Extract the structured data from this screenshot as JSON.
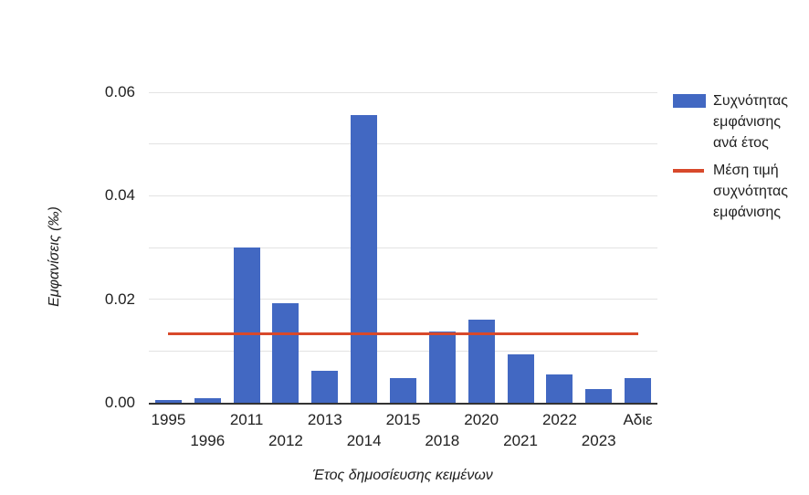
{
  "chart_data": {
    "type": "bar",
    "title": "",
    "xlabel": "Έτος δημοσίευσης κειμένων",
    "ylabel": "Εμφανίσεις (‰)",
    "categories": [
      "1995",
      "1996",
      "2011",
      "2012",
      "2013",
      "2014",
      "2015",
      "2018",
      "2020",
      "2021",
      "2022",
      "2023",
      "Αδιε"
    ],
    "series": [
      {
        "name": "Συχνότητας εμφάνισης ανά έτος",
        "type": "bar",
        "color": "#4268c2",
        "values": [
          0.0005,
          0.0009,
          0.0301,
          0.0193,
          0.0062,
          0.0557,
          0.0047,
          0.0138,
          0.016,
          0.0094,
          0.0055,
          0.0027,
          0.0048
        ]
      },
      {
        "name": "Μέση τιμή συχνότητας εμφάνισης",
        "type": "horizontal-line",
        "color": "#d8492b",
        "value": 0.0133
      }
    ],
    "ylim": [
      0,
      0.0611
    ],
    "yticks": {
      "values": [
        0,
        0.02,
        0.04,
        0.06
      ],
      "labels": [
        "0.00",
        "0.02",
        "0.04",
        "0.06"
      ]
    },
    "gridline_values": [
      0.01,
      0.02,
      0.03,
      0.04,
      0.05,
      0.06
    ],
    "grid": true,
    "legend_position": "right",
    "xtick_stagger": {
      "row1_indices": [
        0,
        2,
        4,
        6,
        8,
        10,
        12
      ],
      "row2_indices": [
        1,
        3,
        5,
        7,
        9,
        11
      ]
    }
  },
  "legend": {
    "entries": [
      {
        "id": "frequency-per-year",
        "marker": "bar-swatch",
        "color": "#4268c2",
        "lines": [
          "Συχνότητας",
          "εμφάνισης",
          "ανά έτος"
        ]
      },
      {
        "id": "mean-frequency",
        "marker": "line-swatch",
        "color": "#d8492b",
        "lines": [
          "Μέση τιμή",
          "συχνότητας",
          "εμφάνισης"
        ]
      }
    ]
  },
  "colors": {
    "bar": "#4268c2",
    "mean_line": "#d8492b",
    "gridline": "#e3e3e3",
    "axis_line": "#333333",
    "text": "#212121",
    "background": "#ffffff"
  }
}
